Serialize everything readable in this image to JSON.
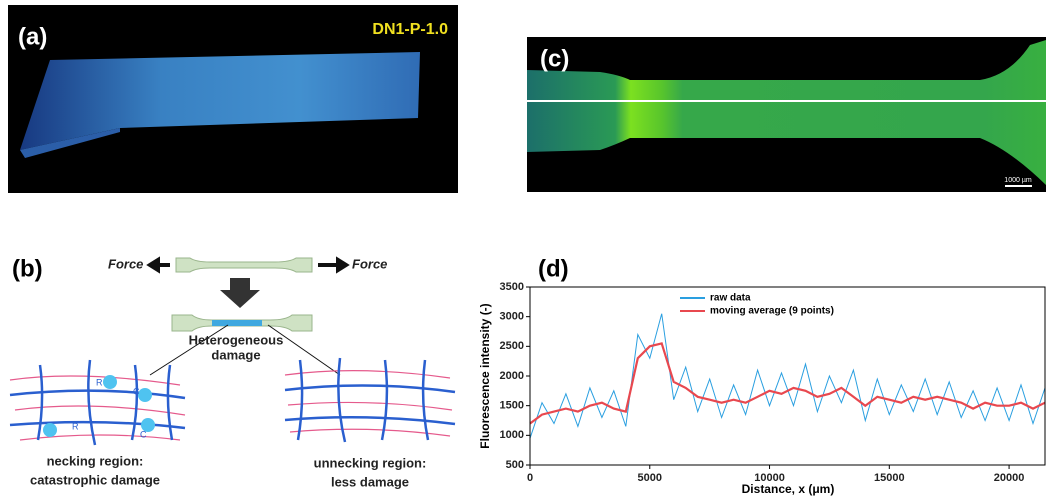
{
  "panels": {
    "a": {
      "label": "(a)",
      "sample": "DN1-P-1.0"
    },
    "b": {
      "label": "(b)",
      "force_left": "Force",
      "force_right": "Force",
      "damage_lines": [
        "Heterogeneous",
        "damage"
      ],
      "necking_lines": [
        "necking region:",
        "catastrophic damage"
      ],
      "unnecking_lines": [
        "unnecking region:",
        "less damage"
      ],
      "markers": [
        "R",
        "C",
        "R",
        "C"
      ]
    },
    "c": {
      "label": "(c)",
      "scale_bar": "1000 µm"
    }
  },
  "chart_data": {
    "type": "line",
    "label": "(d)",
    "x_label": "Distance, x (μm)",
    "y_label": "Fluorescence intensity (-)",
    "xlim": [
      0,
      21500
    ],
    "ylim": [
      500,
      3500
    ],
    "xticks": [
      0,
      5000,
      10000,
      15000,
      20000
    ],
    "yticks": [
      500,
      1000,
      1500,
      2000,
      2500,
      3000,
      3500
    ],
    "x": [
      0,
      500,
      1000,
      1500,
      2000,
      2500,
      3000,
      3500,
      4000,
      4500,
      5000,
      5500,
      6000,
      6500,
      7000,
      7500,
      8000,
      8500,
      9000,
      9500,
      10000,
      10500,
      11000,
      11500,
      12000,
      12500,
      13000,
      13500,
      14000,
      14500,
      15000,
      15500,
      16000,
      16500,
      17000,
      17500,
      18000,
      18500,
      19000,
      19500,
      20000,
      20500,
      21000,
      21500
    ],
    "series": [
      {
        "name": "raw data",
        "color": "#2a9fe0",
        "values": [
          950,
          1550,
          1200,
          1700,
          1150,
          1800,
          1300,
          1750,
          1150,
          2700,
          2300,
          3050,
          1600,
          2150,
          1400,
          1950,
          1300,
          1850,
          1350,
          2100,
          1500,
          2050,
          1500,
          2200,
          1400,
          2000,
          1550,
          2100,
          1250,
          1950,
          1350,
          1850,
          1400,
          1950,
          1350,
          1900,
          1300,
          1750,
          1250,
          1800,
          1250,
          1850,
          1200,
          1800
        ]
      },
      {
        "name": "moving average (9 points)",
        "color": "#e8484f",
        "values": [
          1200,
          1350,
          1400,
          1450,
          1400,
          1500,
          1550,
          1450,
          1400,
          2300,
          2500,
          2550,
          1900,
          1800,
          1650,
          1600,
          1550,
          1600,
          1550,
          1650,
          1750,
          1700,
          1800,
          1750,
          1650,
          1700,
          1800,
          1650,
          1500,
          1650,
          1600,
          1550,
          1650,
          1600,
          1650,
          1600,
          1550,
          1450,
          1550,
          1500,
          1500,
          1550,
          1450,
          1550
        ]
      }
    ]
  }
}
